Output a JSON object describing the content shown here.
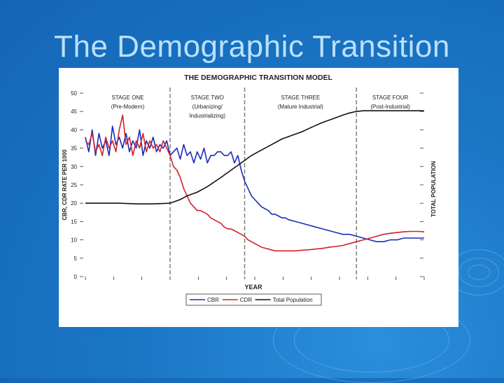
{
  "slide": {
    "title": "The Demographic Transition"
  },
  "chart_data": {
    "type": "line",
    "title": "THE DEMOGRAPHIC TRANSITION MODEL",
    "xlabel": "YEAR",
    "ylabel_left": "CBR, CDR RATE PER 1000",
    "ylabel_right": "TOTAL POPULATION",
    "ylim": [
      0,
      50
    ],
    "y_ticks": [
      "0",
      "5",
      "10",
      "15",
      "20",
      "25",
      "30",
      "35",
      "40",
      "45",
      "50"
    ],
    "x_range": [
      0,
      100
    ],
    "stage_boundaries": [
      25,
      47,
      80
    ],
    "stages": [
      {
        "name": "STAGE ONE",
        "desc": "(Pre-Modern)"
      },
      {
        "name": "STAGE TWO",
        "desc": "(Urbanizing/",
        "desc2": "Industrializing)"
      },
      {
        "name": "STAGE THREE",
        "desc": "(Mature Industrial)"
      },
      {
        "name": "STAGE FOUR",
        "desc": "(Post-Industrial)"
      }
    ],
    "legend": [
      {
        "label": "CBR",
        "color": "#1a2db5"
      },
      {
        "label": "CDR",
        "color": "#d4202a"
      },
      {
        "label": "Total Population",
        "color": "#111111"
      }
    ],
    "series": [
      {
        "name": "CBR",
        "color": "#1a2db5",
        "x": [
          0,
          1,
          2,
          3,
          4,
          5,
          6,
          7,
          8,
          9,
          10,
          11,
          12,
          13,
          14,
          15,
          16,
          17,
          18,
          19,
          20,
          21,
          22,
          23,
          24,
          25,
          26,
          27,
          28,
          29,
          30,
          31,
          32,
          33,
          34,
          35,
          36,
          37,
          38,
          39,
          40,
          41,
          42,
          43,
          44,
          45,
          46,
          47,
          48,
          49,
          50,
          51,
          52,
          53,
          54,
          55,
          56,
          57,
          58,
          59,
          60,
          62,
          64,
          66,
          68,
          70,
          72,
          74,
          76,
          78,
          80,
          82,
          84,
          86,
          88,
          90,
          92,
          94,
          96,
          98,
          100
        ],
        "values": [
          38,
          34,
          40,
          33,
          39,
          35,
          37,
          33,
          41,
          36,
          38,
          35,
          39,
          34,
          37,
          35,
          40,
          33,
          37,
          35,
          38,
          34,
          36,
          35,
          37,
          33,
          34,
          35,
          32,
          36,
          33,
          34,
          31,
          34,
          32,
          35,
          31,
          33,
          33,
          34,
          34,
          33,
          33,
          34,
          31,
          33,
          29,
          26,
          24,
          22,
          21,
          20,
          19,
          18.5,
          18,
          17,
          17,
          16.5,
          16,
          16,
          15.5,
          15,
          14.5,
          14,
          13.5,
          13,
          12.5,
          12,
          11.5,
          11.5,
          11,
          10.5,
          10,
          9.5,
          9.5,
          10,
          10,
          10.5,
          10.5,
          10.5,
          10.5
        ]
      },
      {
        "name": "CDR",
        "color": "#d4202a",
        "x": [
          0,
          1,
          2,
          3,
          4,
          5,
          6,
          7,
          8,
          9,
          10,
          11,
          12,
          13,
          14,
          15,
          16,
          17,
          18,
          19,
          20,
          21,
          22,
          23,
          24,
          25,
          26,
          27,
          28,
          29,
          30,
          31,
          32,
          33,
          34,
          35,
          36,
          37,
          38,
          39,
          40,
          41,
          42,
          43,
          44,
          45,
          46,
          47,
          48,
          49,
          50,
          52,
          54,
          56,
          58,
          60,
          62,
          64,
          66,
          68,
          70,
          72,
          74,
          76,
          78,
          80,
          82,
          84,
          86,
          88,
          90,
          92,
          94,
          96,
          98,
          100
        ],
        "values": [
          37,
          36,
          39,
          34,
          36,
          33,
          38,
          35,
          37,
          34,
          40,
          44,
          36,
          38,
          33,
          37,
          35,
          39,
          34,
          37,
          35,
          36,
          34,
          37,
          35,
          33,
          30,
          29,
          27,
          24,
          22,
          20,
          19,
          18,
          18,
          17.5,
          17,
          16,
          15.5,
          15,
          14.5,
          13.5,
          13,
          13,
          12.5,
          12,
          11.5,
          11,
          10,
          9.5,
          9,
          8,
          7.5,
          7,
          7,
          7,
          7,
          7.2,
          7.3,
          7.5,
          7.7,
          8,
          8.2,
          8.5,
          9,
          9.5,
          10,
          10.5,
          11,
          11.5,
          11.8,
          12,
          12.2,
          12.3,
          12.3,
          12.2
        ]
      },
      {
        "name": "Total Population",
        "color": "#111111",
        "x": [
          0,
          5,
          10,
          15,
          20,
          25,
          28,
          30,
          33,
          36,
          40,
          43,
          46,
          49,
          52,
          55,
          58,
          61,
          64,
          67,
          70,
          73,
          76,
          78,
          80,
          82,
          84,
          86,
          90,
          95,
          100
        ],
        "values": [
          20,
          20,
          20,
          19.8,
          19.8,
          20,
          21,
          22,
          23,
          24.5,
          27,
          29,
          31,
          33,
          34.5,
          36,
          37.5,
          38.5,
          39.5,
          40.8,
          42,
          43,
          44,
          44.6,
          45,
          45.2,
          45.2,
          45.2,
          45.2,
          45.2,
          45.2
        ]
      }
    ]
  }
}
